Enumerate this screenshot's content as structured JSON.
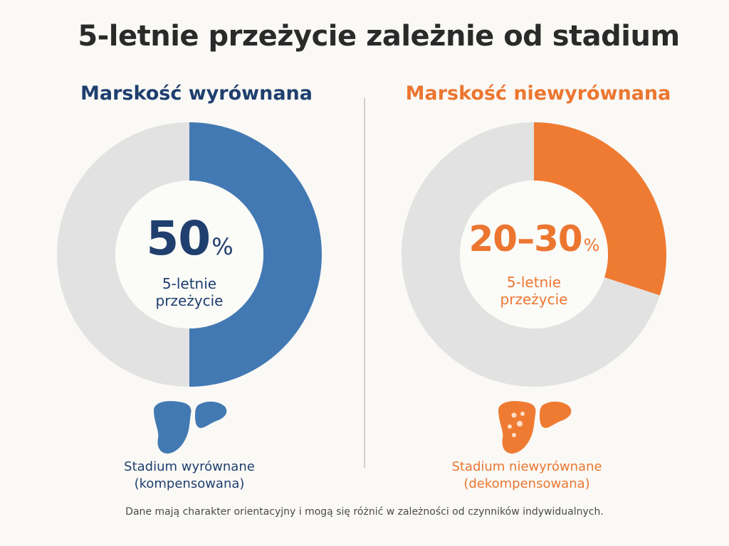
{
  "title": "5-letnie przeżycie zależnie od stadium",
  "colors": {
    "compensated": "#4379b3",
    "decompensated": "#ef7b32",
    "ring_track": "#e2e2e2",
    "donut_hole": "#fbfbf8"
  },
  "chart_data": [
    {
      "type": "pie",
      "title": "Marskość wyrównana",
      "value_label": "50",
      "unit": "%",
      "caption": "5-letnie przeżycie",
      "slices": [
        {
          "value": 50
        },
        {
          "value": 50
        }
      ],
      "slice_colors": [
        "#4379b3",
        "#e2e2e2"
      ],
      "icon": "liver-icon",
      "stage_line1": "Stadium wyrównane",
      "stage_line2": "(kompensowana)"
    },
    {
      "type": "pie",
      "title": "Marskość niewyrównana",
      "value_label": "20–30",
      "unit": "%",
      "caption": "5-letnie przeżycie",
      "slices": [
        {
          "value": 30
        },
        {
          "value": 70
        }
      ],
      "slice_colors": [
        "#ef7b32",
        "#e2e2e2"
      ],
      "icon": "liver-spotted-icon",
      "stage_line1": "Stadium niewyrównane",
      "stage_line2": "(dekompensowana)"
    }
  ],
  "footnote": "Dane mają charakter orientacyjny i mogą się różnić w zależności od czynników indywidualnych."
}
